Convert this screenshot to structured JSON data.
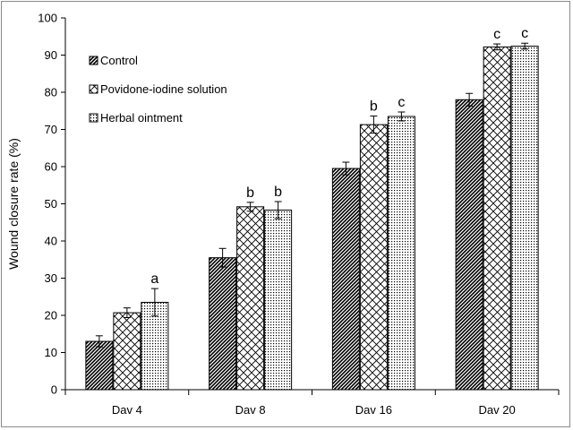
{
  "chart_data": {
    "type": "bar",
    "title": "",
    "xlabel": "",
    "ylabel": "Wound closure rate (%)",
    "ylim": [
      0,
      100
    ],
    "yticks": [
      "0",
      "10",
      "20",
      "30",
      "40",
      "50",
      "60",
      "70",
      "80",
      "90",
      "100"
    ],
    "categories": [
      "Dav 4",
      "Dav 8",
      "Dav 16",
      "Dav 20"
    ],
    "grid": false,
    "legend_position": "top-left",
    "series": [
      {
        "name": "Control",
        "pattern": "diagonal-dense",
        "values": [
          13,
          35.5,
          59.5,
          78
        ],
        "errors": [
          1.5,
          2.5,
          1.7,
          1.7
        ],
        "labels": [
          "",
          "",
          "",
          ""
        ]
      },
      {
        "name": "Povidone-iodine solution",
        "pattern": "crosshatch",
        "values": [
          20.7,
          49.2,
          71.3,
          92.2
        ],
        "errors": [
          1.3,
          1.2,
          2.3,
          0.8
        ],
        "labels": [
          "",
          "b",
          "b",
          "c"
        ]
      },
      {
        "name": "Herbal ointment",
        "pattern": "dots",
        "values": [
          23.5,
          48.3,
          73.5,
          92.4
        ],
        "errors": [
          3.7,
          2.3,
          1.2,
          0.8
        ],
        "labels": [
          "a",
          "b",
          "c",
          "c"
        ]
      }
    ]
  }
}
